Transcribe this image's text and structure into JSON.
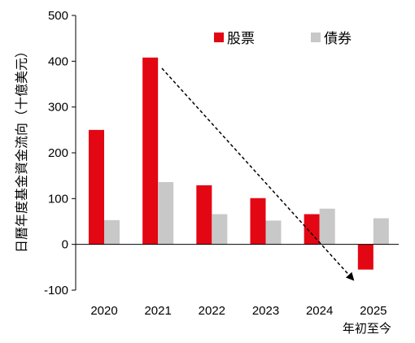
{
  "chart_data": {
    "type": "bar",
    "title": "",
    "xlabel": "",
    "ylabel": "日曆年度基金資金流向（十億美元）",
    "categories": [
      "2020",
      "2021",
      "2022",
      "2023",
      "2024",
      "2025"
    ],
    "category_note": "年初至今",
    "ylim": [
      -100,
      500
    ],
    "yticks": [
      500,
      400,
      300,
      200,
      100,
      0,
      -100
    ],
    "grid": false,
    "legend_position": "top-right",
    "series": [
      {
        "name": "股票",
        "color": "#e30613",
        "values": [
          250,
          408,
          129,
          101,
          66,
          -55
        ]
      },
      {
        "name": "債券",
        "color": "#c8c8c8",
        "values": [
          53,
          136,
          66,
          52,
          78,
          57
        ]
      }
    ],
    "negative_tick_color": "#e30613",
    "annotation": "dashed downward arrow over equity bars from 2021 to 2025"
  }
}
